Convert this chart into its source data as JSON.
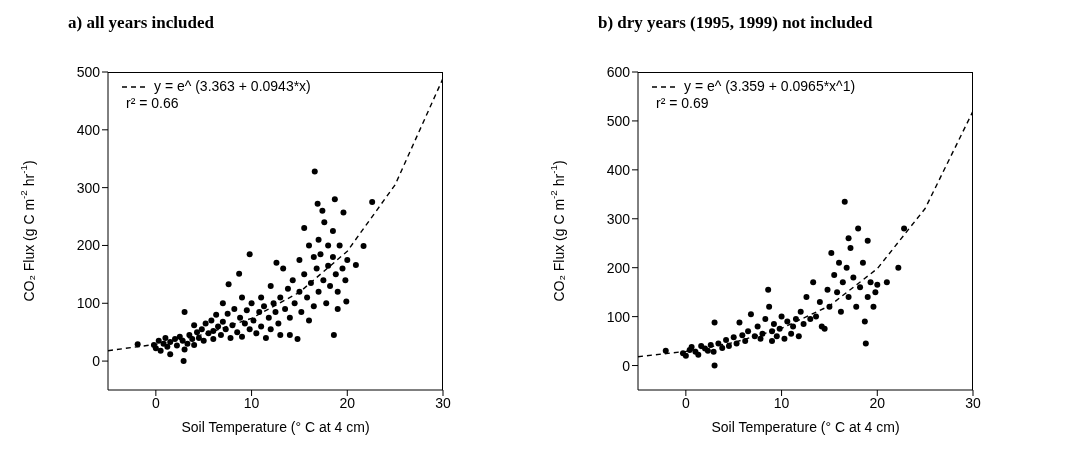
{
  "chart_data": [
    {
      "type": "scatter",
      "title": "a)  all years included",
      "xlabel": "Soil Temperature (° C at 4 cm)",
      "ylabel": "CO₂ Flux (g C m$^{-2}$ hr$^{-1}$)",
      "xlim": [
        -5,
        30
      ],
      "xticks": [
        0,
        10,
        20,
        30
      ],
      "ylim": [
        -50,
        500
      ],
      "yticks": [
        0,
        100,
        200,
        300,
        400,
        500
      ],
      "grid": false,
      "legend": "top left",
      "line_style": "dashed",
      "annotations": [
        "r² = 0.66"
      ],
      "series": [
        {
          "type": "line",
          "name": "y = e^ (3.363 + 0.0943*x)",
          "color": "#000000",
          "x": [
            -5,
            0,
            5,
            10,
            15,
            20,
            25,
            30
          ],
          "values": [
            18,
            29,
            46,
            74,
            119,
            190,
            305,
            489
          ]
        },
        {
          "type": "scatter",
          "marker": "circle",
          "color": "#000000",
          "x": [
            -1.9,
            -0.2,
            0,
            0.3,
            0.5,
            0.8,
            1,
            1.2,
            1.5,
            1.5,
            2,
            2.2,
            2.5,
            2.8,
            3,
            3,
            2.9,
            3.3,
            3.5,
            3.8,
            4,
            4,
            4.3,
            4.5,
            4.8,
            5,
            5.2,
            5.5,
            5.8,
            6,
            6,
            6.3,
            6.5,
            6.8,
            7,
            7,
            7.3,
            7.6,
            7.5,
            7.8,
            8,
            8.2,
            8.5,
            8.7,
            8.8,
            9,
            9,
            9.3,
            9.5,
            9.8,
            9.8,
            10,
            10.2,
            10.5,
            10.8,
            11,
            11,
            11.3,
            11.5,
            11.8,
            12,
            12,
            12.3,
            12.5,
            12.6,
            12.8,
            13,
            13,
            13.3,
            13.5,
            13.8,
            14,
            14,
            14.3,
            14.5,
            14.8,
            15,
            15,
            15.2,
            15.5,
            15.5,
            15.8,
            16,
            16,
            16.2,
            16.5,
            16.5,
            16.6,
            16.8,
            16.9,
            17,
            17,
            17.2,
            17.4,
            17.5,
            17.6,
            17.8,
            18,
            18,
            18.2,
            18.5,
            18.5,
            18.6,
            18.7,
            18.8,
            19,
            19,
            19.2,
            19.5,
            19.6,
            19.8,
            19.9,
            20,
            20.9,
            21.7,
            22.6
          ],
          "values": [
            29,
            28,
            22,
            35,
            18,
            30,
            40,
            25,
            12,
            33,
            38,
            27,
            42,
            35,
            20,
            85,
            0,
            30,
            45,
            38,
            62,
            28,
            50,
            40,
            55,
            35,
            65,
            48,
            70,
            52,
            38,
            80,
            60,
            45,
            68,
            100,
            55,
            133,
            82,
            40,
            62,
            90,
            50,
            151,
            75,
            110,
            42,
            65,
            88,
            185,
            55,
            100,
            70,
            48,
            85,
            110,
            60,
            95,
            40,
            75,
            130,
            55,
            100,
            85,
            170,
            65,
            110,
            45,
            160,
            90,
            125,
            75,
            45,
            140,
            100,
            38,
            120,
            175,
            85,
            230,
            150,
            110,
            200,
            70,
            135,
            180,
            95,
            328,
            160,
            272,
            210,
            120,
            185,
            260,
            140,
            240,
            100,
            200,
            165,
            130,
            225,
            180,
            45,
            280,
            150,
            90,
            120,
            200,
            160,
            257,
            140,
            103,
            175,
            166,
            199,
            275
          ]
        }
      ]
    },
    {
      "type": "scatter",
      "title": "b)  dry years (1995, 1999) not included",
      "xlabel": "Soil Temperature (° C at 4 cm)",
      "ylabel": "CO₂ Flux (g C m$^{-2}$ hr$^{-1}$)",
      "xlim": [
        -5,
        30
      ],
      "xticks": [
        0,
        10,
        20,
        30
      ],
      "ylim": [
        -50,
        600
      ],
      "yticks": [
        0,
        100,
        200,
        300,
        400,
        500,
        600
      ],
      "grid": false,
      "legend": "top left",
      "line_style": "dashed",
      "annotations": [
        "r² = 0.69"
      ],
      "series": [
        {
          "type": "line",
          "name": "y = e^ (3.359 + 0.0965*x^1)",
          "color": "#000000",
          "x": [
            -5,
            0,
            5,
            10,
            15,
            20,
            25,
            30
          ],
          "values": [
            18,
            29,
            47,
            76,
            122,
            198,
            321,
            520
          ]
        },
        {
          "type": "scatter",
          "marker": "circle",
          "color": "#000000",
          "x": [
            -2.1,
            -0.3,
            0,
            0.4,
            0.6,
            1,
            1.3,
            1.6,
            2,
            2.3,
            2.6,
            3,
            3,
            2.9,
            3.4,
            3.8,
            4.2,
            4.5,
            5,
            5.3,
            5.6,
            5.9,
            6.2,
            6.5,
            6.8,
            7.2,
            7.5,
            7.8,
            8,
            8.3,
            8.6,
            8.7,
            9,
            9,
            9.2,
            9.5,
            9.8,
            10,
            10.3,
            10.6,
            11,
            11.2,
            11.5,
            11.8,
            12,
            12.3,
            12.6,
            13,
            13.3,
            13.6,
            14,
            14.2,
            14.5,
            14.8,
            15,
            15.2,
            15.5,
            15.8,
            16,
            16.2,
            16.4,
            16.6,
            16.8,
            17,
            17,
            17.2,
            17.5,
            17.8,
            18,
            18.2,
            18.5,
            18.7,
            18.8,
            19,
            19,
            19.3,
            19.6,
            19.8,
            20,
            21,
            22.2,
            22.8
          ],
          "values": [
            30,
            25,
            20,
            32,
            38,
            28,
            22,
            40,
            35,
            30,
            42,
            88,
            0,
            28,
            45,
            36,
            52,
            40,
            58,
            45,
            88,
            62,
            50,
            70,
            105,
            60,
            80,
            55,
            65,
            95,
            155,
            120,
            70,
            50,
            85,
            60,
            75,
            100,
            55,
            90,
            65,
            80,
            95,
            60,
            110,
            85,
            140,
            95,
            170,
            100,
            130,
            80,
            75,
            155,
            120,
            230,
            185,
            150,
            210,
            110,
            170,
            335,
            200,
            260,
            140,
            240,
            180,
            120,
            280,
            160,
            210,
            90,
            45,
            255,
            140,
            170,
            120,
            150,
            165,
            170,
            200,
            280
          ]
        }
      ]
    }
  ]
}
